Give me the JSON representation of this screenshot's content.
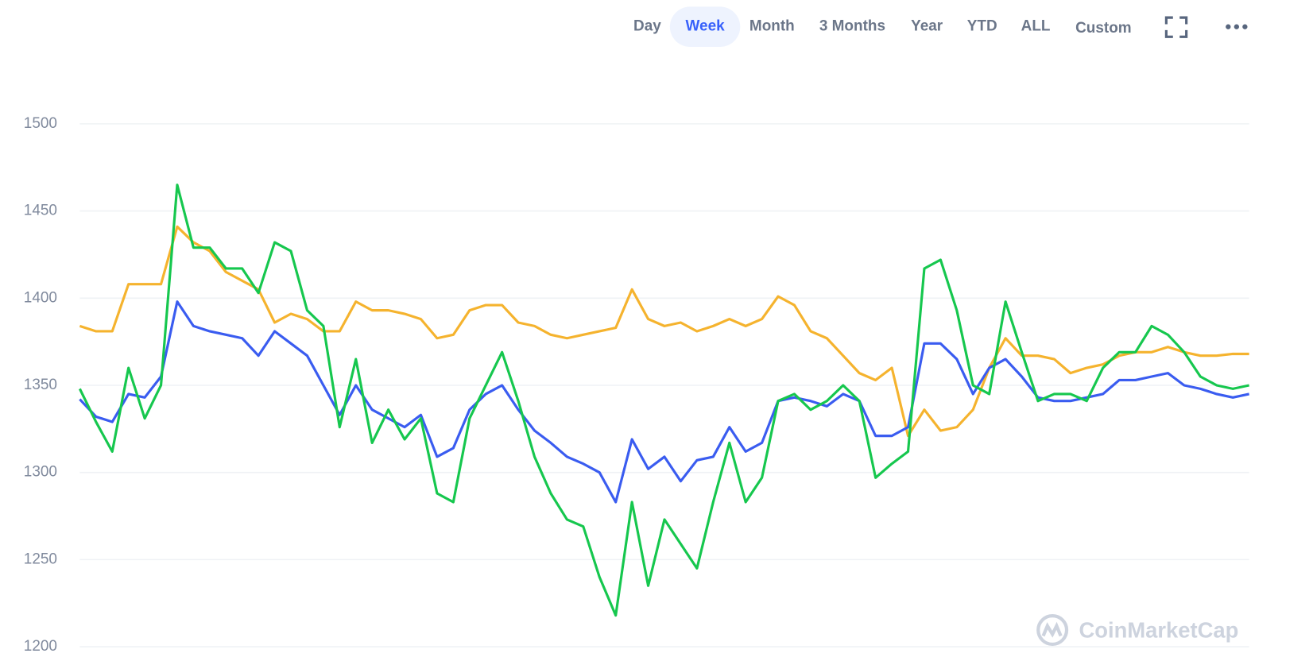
{
  "toolbar": {
    "ranges": [
      "Day",
      "Week",
      "Month",
      "3 Months",
      "Year",
      "YTD",
      "ALL",
      "Custom"
    ],
    "selected": 1
  },
  "chart_data": {
    "type": "line",
    "watermark": "CoinMarketCap",
    "ylim": [
      1200,
      1500
    ],
    "yticks": [
      1200,
      1250,
      1300,
      1350,
      1400,
      1450,
      1500
    ],
    "grid": true,
    "series": [
      {
        "color": "#f5b32e",
        "values": [
          1384,
          1381,
          1381,
          1408,
          1408,
          1408,
          1441,
          1432,
          1427,
          1415,
          1410,
          1405,
          1386,
          1391,
          1388,
          1381,
          1381,
          1398,
          1393,
          1393,
          1391,
          1388,
          1377,
          1379,
          1393,
          1396,
          1396,
          1386,
          1384,
          1379,
          1377,
          1379,
          1381,
          1383,
          1405,
          1388,
          1384,
          1386,
          1381,
          1384,
          1388,
          1384,
          1388,
          1401,
          1396,
          1381,
          1377,
          1367,
          1357,
          1353,
          1360,
          1321,
          1336,
          1324,
          1326,
          1336,
          1360,
          1377,
          1367,
          1367,
          1365,
          1357,
          1360,
          1362,
          1367,
          1369,
          1369,
          1372,
          1369,
          1367,
          1367,
          1368,
          1368
        ]
      },
      {
        "color": "#3a5cf0",
        "values": [
          1342,
          1332,
          1329,
          1345,
          1343,
          1355,
          1398,
          1384,
          1381,
          1379,
          1377,
          1367,
          1381,
          1374,
          1367,
          1350,
          1333,
          1350,
          1336,
          1331,
          1326,
          1333,
          1309,
          1314,
          1336,
          1345,
          1350,
          1336,
          1324,
          1317,
          1309,
          1305,
          1300,
          1283,
          1319,
          1302,
          1309,
          1295,
          1307,
          1309,
          1326,
          1312,
          1317,
          1341,
          1343,
          1341,
          1338,
          1345,
          1341,
          1321,
          1321,
          1326,
          1374,
          1374,
          1365,
          1345,
          1360,
          1365,
          1355,
          1343,
          1341,
          1341,
          1343,
          1345,
          1353,
          1353,
          1355,
          1357,
          1350,
          1348,
          1345,
          1343,
          1345
        ]
      },
      {
        "color": "#16c74e",
        "values": [
          1348,
          1329,
          1312,
          1360,
          1331,
          1350,
          1465,
          1429,
          1429,
          1417,
          1417,
          1403,
          1432,
          1427,
          1393,
          1384,
          1326,
          1365,
          1317,
          1336,
          1319,
          1331,
          1288,
          1283,
          1331,
          1350,
          1369,
          1341,
          1309,
          1288,
          1273,
          1269,
          1240,
          1218,
          1283,
          1235,
          1273,
          1259,
          1245,
          1283,
          1317,
          1283,
          1297,
          1341,
          1345,
          1336,
          1341,
          1350,
          1341,
          1297,
          1305,
          1312,
          1417,
          1422,
          1393,
          1350,
          1345,
          1398,
          1369,
          1341,
          1345,
          1345,
          1341,
          1360,
          1369,
          1369,
          1384,
          1379,
          1369,
          1355,
          1350,
          1348,
          1350
        ]
      }
    ]
  }
}
